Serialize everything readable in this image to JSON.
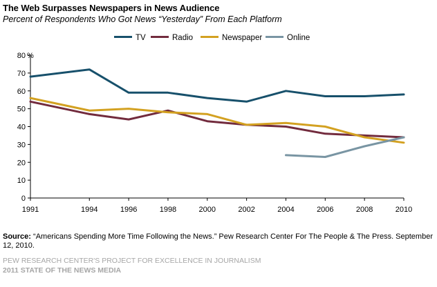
{
  "header": {
    "title": "The Web Surpasses Newspapers  in News Audience",
    "subtitle": "Percent of Respondents Who Got News “Yesterday” From Each Platform"
  },
  "chart_data": {
    "type": "line",
    "x": [
      1991,
      1994,
      1996,
      1998,
      2000,
      2002,
      2004,
      2006,
      2008,
      2010
    ],
    "x_tick_labels": [
      "1991",
      "1994",
      "1996",
      "1998",
      "2000",
      "2002",
      "2004",
      "2006",
      "2008",
      "2010"
    ],
    "y_tick_labels": [
      "0",
      "10",
      "20",
      "30",
      "40",
      "50",
      "60",
      "70",
      "80"
    ],
    "y_unit_label": "%",
    "ylim": [
      0,
      80
    ],
    "grid": false,
    "legend_position": "top",
    "series": [
      {
        "name": "TV",
        "color": "#17506b",
        "values": [
          68,
          72,
          59,
          59,
          56,
          54,
          60,
          57,
          57,
          58
        ]
      },
      {
        "name": "Radio",
        "color": "#722b3d",
        "values": [
          54,
          47,
          44,
          49,
          43,
          41,
          40,
          36,
          35,
          34
        ]
      },
      {
        "name": "Newspaper",
        "color": "#d3a121",
        "values": [
          56,
          49,
          50,
          48,
          47,
          41,
          42,
          40,
          34,
          31
        ]
      },
      {
        "name": "Online",
        "color": "#7995a3",
        "values": [
          null,
          null,
          null,
          null,
          null,
          null,
          24,
          23,
          29,
          34
        ]
      }
    ]
  },
  "footer": {
    "source_label": "Source:",
    "source_text": " “Americans Spending More Time Following the News.” Pew Research Center For The People & The Press. September 12, 2010.",
    "org_line": "PEW RESEARCH CENTER'S PROJECT FOR EXCELLENCE IN JOURNALISM",
    "report_line": "2011 STATE OF THE NEWS MEDIA"
  }
}
